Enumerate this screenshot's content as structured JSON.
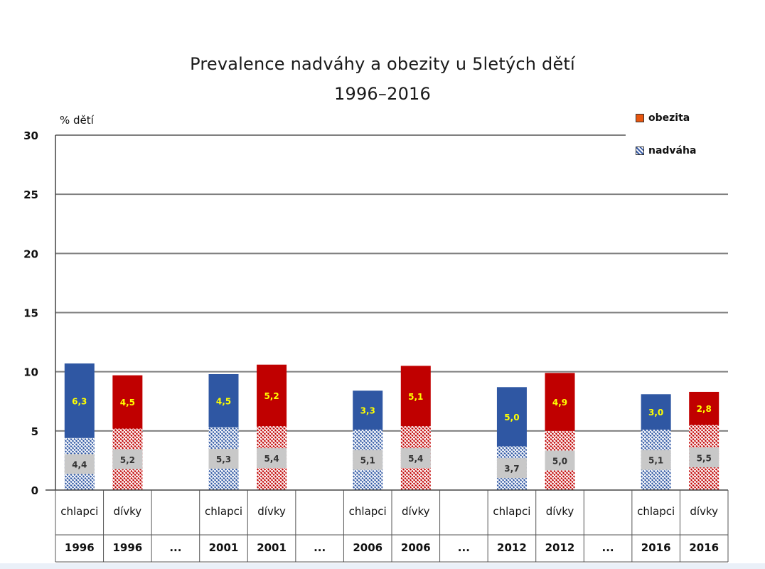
{
  "chart_data": {
    "type": "bar",
    "stacked": true,
    "title": "Prevalence nadváhy a obezity u 5letých dětí",
    "subtitle": "1996–2016",
    "ylabel": "% dětí",
    "ylim": [
      0,
      30
    ],
    "yticks": [
      0,
      5,
      10,
      15,
      20,
      25,
      30
    ],
    "grid": true,
    "legend_position": "top-right",
    "legend": [
      "obezita",
      "nadváha"
    ],
    "categories": [
      {
        "label": "chlapci",
        "year": "1996",
        "gender": "chlapci"
      },
      {
        "label": "dívky",
        "year": "1996",
        "gender": "dívky"
      },
      {
        "label": "",
        "year": "...",
        "gender": "gap"
      },
      {
        "label": "chlapci",
        "year": "2001",
        "gender": "chlapci"
      },
      {
        "label": "dívky",
        "year": "2001",
        "gender": "dívky"
      },
      {
        "label": "",
        "year": "...",
        "gender": "gap"
      },
      {
        "label": "chlapci",
        "year": "2006",
        "gender": "chlapci"
      },
      {
        "label": "dívky",
        "year": "2006",
        "gender": "dívky"
      },
      {
        "label": "",
        "year": "...",
        "gender": "gap"
      },
      {
        "label": "chlapci",
        "year": "2012",
        "gender": "chlapci"
      },
      {
        "label": "dívky",
        "year": "2012",
        "gender": "dívky"
      },
      {
        "label": "",
        "year": "...",
        "gender": "gap"
      },
      {
        "label": "chlapci",
        "year": "2016",
        "gender": "chlapci"
      },
      {
        "label": "dívky",
        "year": "2016",
        "gender": "dívky"
      }
    ],
    "series": [
      {
        "name": "nadváha",
        "values": [
          4.4,
          5.2,
          null,
          5.3,
          5.4,
          null,
          5.1,
          5.4,
          null,
          3.7,
          5.0,
          null,
          5.1,
          5.5
        ],
        "labels": [
          "4,4",
          "5,2",
          "",
          "5,3",
          "5,4",
          "",
          "5,1",
          "5,4",
          "",
          "3,7",
          "5,0",
          "",
          "5,1",
          "5,5"
        ]
      },
      {
        "name": "obezita",
        "values": [
          6.3,
          4.5,
          null,
          4.5,
          5.2,
          null,
          3.3,
          5.1,
          null,
          5.0,
          4.9,
          null,
          3.0,
          2.8
        ],
        "labels": [
          "6,3",
          "4,5",
          "",
          "4,5",
          "5,2",
          "",
          "3,3",
          "5,1",
          "",
          "5,0",
          "4,9",
          "",
          "3,0",
          "2,8"
        ]
      }
    ],
    "colors": {
      "chlapci": "#2f57a3",
      "divky": "#c00000",
      "obezita_label": "#ffff00",
      "nadvaha_label_bg": "#c8c8c8",
      "grid": "#7f7f7f"
    }
  }
}
